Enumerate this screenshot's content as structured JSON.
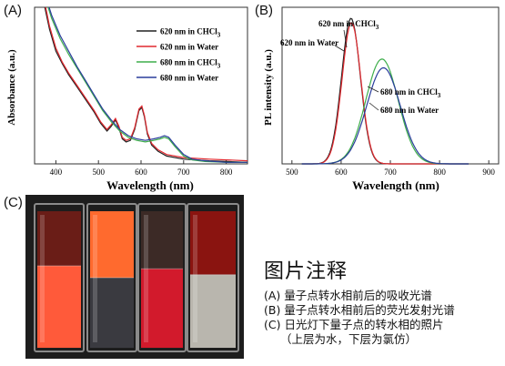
{
  "panels": {
    "a_label": "(A)",
    "b_label": "(B)",
    "c_label": "(C)"
  },
  "chart_data": [
    {
      "type": "line",
      "panel": "A",
      "title": "",
      "xlabel": "Wavelength (nm)",
      "ylabel": "Absorbance (a.u.)",
      "xlim": [
        350,
        850
      ],
      "ylim": [
        0,
        1
      ],
      "xticks": [
        400,
        500,
        600,
        700,
        800
      ],
      "yticks": [],
      "grid": false,
      "legend": "top-right",
      "series": [
        {
          "name": "620 nm in CHCl3",
          "label_main": "620 nm in CHCl",
          "label_sub": "3",
          "color": "#222222",
          "x": [
            370,
            385,
            400,
            415,
            430,
            450,
            470,
            490,
            505,
            520,
            530,
            540,
            548,
            556,
            565,
            575,
            585,
            595,
            602,
            608,
            615,
            625,
            640,
            660,
            700,
            760,
            850
          ],
          "y": [
            1.05,
            0.86,
            0.72,
            0.64,
            0.57,
            0.49,
            0.41,
            0.33,
            0.26,
            0.21,
            0.24,
            0.28,
            0.23,
            0.16,
            0.14,
            0.15,
            0.22,
            0.34,
            0.36,
            0.3,
            0.19,
            0.12,
            0.08,
            0.05,
            0.03,
            0.02,
            0.01
          ]
        },
        {
          "name": "620 nm in Water",
          "label_main": "620 nm in Water",
          "label_sub": "",
          "color": "#e0282e",
          "x": [
            370,
            385,
            400,
            415,
            430,
            450,
            470,
            490,
            505,
            520,
            530,
            540,
            548,
            556,
            565,
            575,
            585,
            595,
            602,
            608,
            615,
            625,
            640,
            660,
            700,
            760,
            850
          ],
          "y": [
            1.08,
            0.88,
            0.74,
            0.65,
            0.58,
            0.5,
            0.42,
            0.34,
            0.27,
            0.22,
            0.25,
            0.29,
            0.24,
            0.17,
            0.15,
            0.16,
            0.23,
            0.35,
            0.37,
            0.31,
            0.2,
            0.13,
            0.09,
            0.06,
            0.04,
            0.03,
            0.02
          ]
        },
        {
          "name": "680 nm in CHCl3",
          "label_main": "680 nm in CHCl",
          "label_sub": "3",
          "color": "#3fae4c",
          "x": [
            370,
            390,
            410,
            430,
            450,
            470,
            490,
            510,
            530,
            550,
            570,
            590,
            610,
            630,
            645,
            655,
            665,
            680,
            700,
            720,
            750,
            800,
            850
          ],
          "y": [
            1.1,
            0.93,
            0.8,
            0.7,
            0.61,
            0.52,
            0.43,
            0.34,
            0.27,
            0.21,
            0.17,
            0.15,
            0.14,
            0.15,
            0.16,
            0.17,
            0.16,
            0.11,
            0.05,
            0.025,
            0.015,
            0.01,
            0.01
          ]
        },
        {
          "name": "680 nm in Water",
          "label_main": "680 nm in Water",
          "label_sub": "",
          "color": "#2a3d9c",
          "x": [
            370,
            390,
            410,
            430,
            450,
            470,
            490,
            510,
            530,
            550,
            570,
            590,
            610,
            630,
            645,
            655,
            665,
            680,
            700,
            720,
            750,
            800,
            850
          ],
          "y": [
            1.12,
            0.95,
            0.82,
            0.72,
            0.62,
            0.53,
            0.44,
            0.35,
            0.28,
            0.22,
            0.18,
            0.16,
            0.15,
            0.16,
            0.17,
            0.18,
            0.17,
            0.12,
            0.06,
            0.03,
            0.02,
            0.01,
            0.01
          ]
        }
      ]
    },
    {
      "type": "line",
      "panel": "B",
      "title": "",
      "xlabel": "Wavelength (nm)",
      "ylabel": "PL intensity (a.u.)",
      "xlim": [
        480,
        920
      ],
      "ylim": [
        0,
        1
      ],
      "xticks": [
        500,
        600,
        700,
        800,
        900
      ],
      "yticks": [],
      "grid": false,
      "series": [
        {
          "name": "620 nm in CHCl3",
          "label_main": "620 nm in CHCl",
          "label_sub": "3",
          "color": "#222222",
          "peak": 620,
          "width": 19,
          "amp": 1.0
        },
        {
          "name": "620 nm in Water",
          "label_main": "620 nm in Water",
          "label_sub": "",
          "color": "#e0282e",
          "peak": 621,
          "width": 19,
          "amp": 0.97
        },
        {
          "name": "680 nm in CHCl3",
          "label_main": "680 nm in CHCl",
          "label_sub": "3",
          "color": "#3fae4c",
          "peak": 683,
          "width": 33,
          "amp": 0.72
        },
        {
          "name": "680 nm in Water",
          "label_main": "680 nm in Water",
          "label_sub": "",
          "color": "#2a3d9c",
          "peak": 686,
          "width": 34,
          "amp": 0.66
        }
      ]
    }
  ],
  "caption": {
    "title": "图片注释",
    "lines": [
      "(A) 量子点转水相前后的吸收光谱",
      "(B) 量子点转水相前后的荧光发射光谱",
      "(C) 日光灯下量子点的转水相的照片",
      "（上层为水，下层为氯仿）"
    ]
  },
  "photo": {
    "background": "#1d1d1d",
    "cuvettes": [
      {
        "top_color": "#6a1d17",
        "bottom_color": "#ff5a3a",
        "split": 0.42
      },
      {
        "top_color": "#ff6a2e",
        "bottom_color": "#3a3a40",
        "split": 0.5
      },
      {
        "top_color": "#3c2a26",
        "bottom_color": "#d21a2c",
        "split": 0.44
      },
      {
        "top_color": "#8a1410",
        "bottom_color": "#b9b6ae",
        "split": 0.48
      }
    ]
  }
}
